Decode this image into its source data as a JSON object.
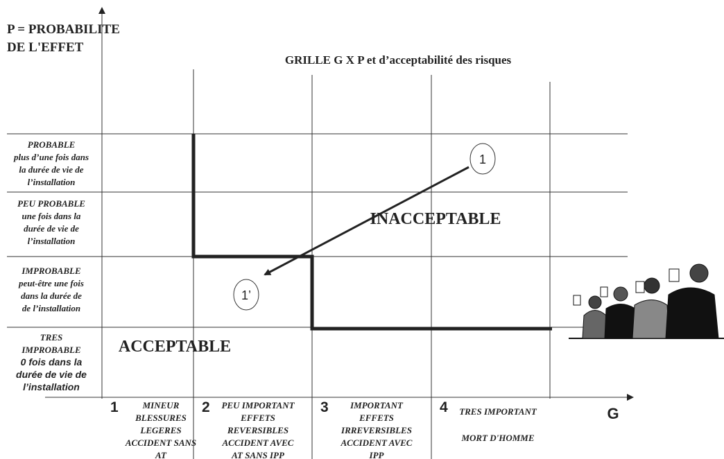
{
  "axis_y_label": [
    "P = PROBABILITE",
    "DE  L'EFFET"
  ],
  "title": "GRILLE G X P et d’acceptabilité des risques",
  "rows": [
    {
      "lines": [
        "PROBABLE",
        "plus d’une fois dans",
        "la durée de vie de",
        "l’installation"
      ]
    },
    {
      "lines": [
        "PEU PROBABLE",
        "une fois dans la",
        "durée de vie de",
        "l’installation"
      ]
    },
    {
      "lines": [
        "IMPROBABLE",
        "peut-être  une fois",
        "dans la durée de",
        "de l’installation"
      ]
    },
    {
      "lines": [
        "TRES",
        "IMPROBABLE",
        "0 fois dans la",
        "durée de vie de",
        "l’installation"
      ]
    }
  ],
  "columns": [
    {
      "number": "1",
      "lines": [
        "MINEUR",
        "BLESSURES",
        "LEGERES",
        "ACCIDENT SANS",
        "AT"
      ]
    },
    {
      "number": "2",
      "lines": [
        "PEU IMPORTANT",
        "EFFETS",
        "REVERSIBLES",
        "ACCIDENT AVEC",
        "AT SANS IPP"
      ]
    },
    {
      "number": "3",
      "lines": [
        "IMPORTANT",
        "EFFETS",
        "IRREVERSIBLES",
        "ACCIDENT AVEC",
        "IPP"
      ]
    },
    {
      "number": "4",
      "lines": [
        "TRES IMPORTANT",
        "MORT D'HOMME"
      ]
    }
  ],
  "x_axis_label": "G",
  "zones": {
    "inacceptable": "INACCEPTABLE",
    "acceptable": "ACCEPTABLE"
  },
  "markers": [
    "1",
    "1’"
  ]
}
